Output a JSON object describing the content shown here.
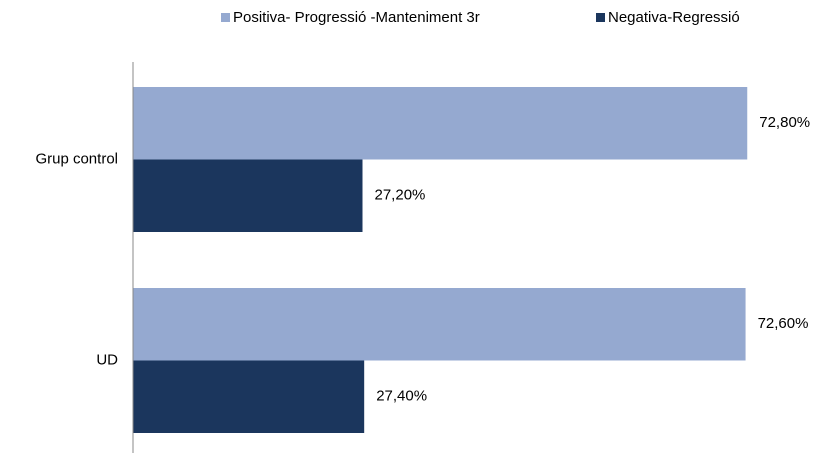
{
  "chart_data": {
    "type": "hbar",
    "categories": [
      "Grup control",
      "UD"
    ],
    "series": [
      {
        "name": "Positiva- Progressió -Manteniment 3r",
        "color": "#95a9d0",
        "values": [
          72.8,
          72.6
        ],
        "value_labels": [
          "72,80%",
          "72,60%"
        ]
      },
      {
        "name": "Negativa-Regressió",
        "color": "#1b365d",
        "values": [
          27.2,
          27.4
        ],
        "value_labels": [
          "27,20%",
          "27,40%"
        ]
      }
    ],
    "xlim": [
      0,
      80
    ],
    "legend": "top"
  }
}
